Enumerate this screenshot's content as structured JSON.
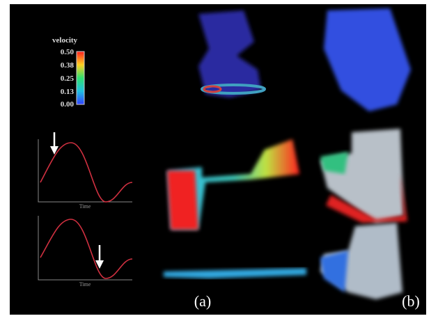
{
  "figure": {
    "colorbar": {
      "title": "velocity",
      "labels": [
        "0.50",
        "0.38",
        "0.25",
        "0.13",
        "0.00"
      ]
    },
    "plots": [
      {
        "x_label": "Time"
      },
      {
        "x_label": "Time"
      }
    ],
    "panels": [
      "(a)",
      "(b)"
    ]
  }
}
